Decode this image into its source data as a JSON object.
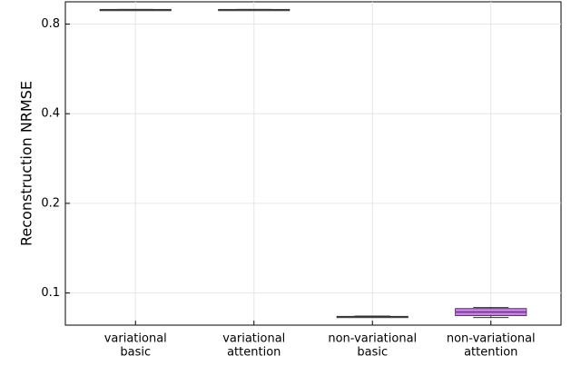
{
  "chart_data": {
    "type": "box",
    "y_label": "Reconstruction NRMSE",
    "categories": [
      [
        "variational",
        "basic"
      ],
      [
        "variational",
        "attention"
      ],
      [
        "non-variational",
        "basic"
      ],
      [
        "non-variational",
        "attention"
      ]
    ],
    "boxes": [
      {
        "min": 0.894,
        "q1": 0.894,
        "median": 0.895,
        "q3": 0.896,
        "max": 0.896,
        "color": "#3a6ea5"
      },
      {
        "min": 0.894,
        "q1": 0.894,
        "median": 0.895,
        "q3": 0.896,
        "max": 0.896,
        "color": "#b0583a"
      },
      {
        "min": 0.0829,
        "q1": 0.0831,
        "median": 0.0833,
        "q3": 0.0835,
        "max": 0.0837,
        "color": "#3e9a4a"
      },
      {
        "min": 0.0827,
        "q1": 0.0839,
        "median": 0.0863,
        "q3": 0.0887,
        "max": 0.0894,
        "color": "#c27ee0"
      }
    ],
    "log_y": true,
    "ylim": [
      0.078,
      0.95
    ],
    "yticks": [
      0.1,
      0.2,
      0.4,
      0.8
    ],
    "grid": true
  }
}
